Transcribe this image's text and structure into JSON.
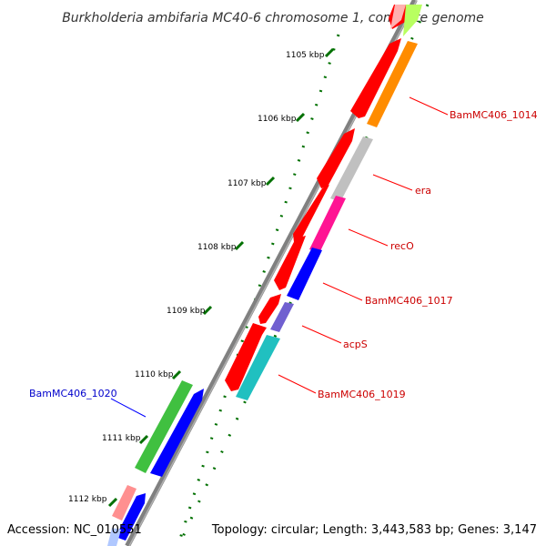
{
  "title": "Burkholderia ambifaria MC40-6 chromosome 1, complete genome",
  "footer": {
    "accession": "Accession: NC_010551",
    "summary": "Topology: circular; Length: 3,443,583 bp; Genes: 3,147"
  },
  "colors": {
    "backbone": "#808080",
    "ticks": "#007000",
    "forward_strand": "#ff0000",
    "label_red": "#cc0000",
    "label_blue": "#0000cc"
  },
  "axis": {
    "unit": "kbp",
    "ticks": [
      {
        "label": "1105 kbp"
      },
      {
        "label": "1106 kbp"
      },
      {
        "label": "1107 kbp"
      },
      {
        "label": "1108 kbp"
      },
      {
        "label": "1109 kbp"
      },
      {
        "label": "1110 kbp"
      },
      {
        "label": "1111 kbp"
      },
      {
        "label": "1112 kbp"
      }
    ]
  },
  "gene_labels": [
    {
      "name": "BamMC406_1014",
      "color": "#cc0000"
    },
    {
      "name": "era",
      "color": "#cc0000"
    },
    {
      "name": "recO",
      "color": "#cc0000"
    },
    {
      "name": "BamMC406_1017",
      "color": "#cc0000"
    },
    {
      "name": "acpS",
      "color": "#cc0000"
    },
    {
      "name": "BamMC406_1019",
      "color": "#cc0000"
    },
    {
      "name": "BamMC406_1020",
      "color": "#0000cc"
    }
  ]
}
